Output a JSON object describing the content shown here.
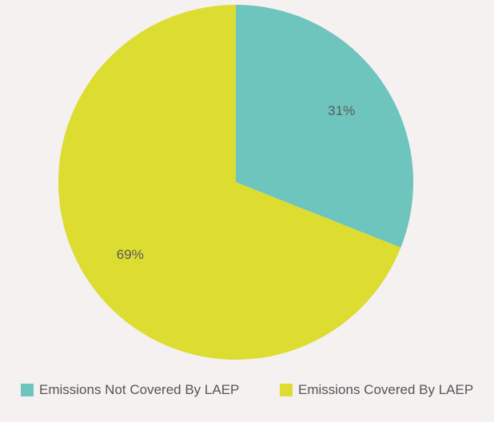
{
  "chart_data": {
    "type": "pie",
    "title": "",
    "legend_position": "bottom",
    "slices": [
      {
        "label": "Emissions Not Covered By LAEP",
        "value": 31,
        "display": "31%",
        "color": "#6ec5bd"
      },
      {
        "label": "Emissions Covered By LAEP",
        "value": 69,
        "display": "69%",
        "color": "#dcdc31"
      }
    ]
  }
}
